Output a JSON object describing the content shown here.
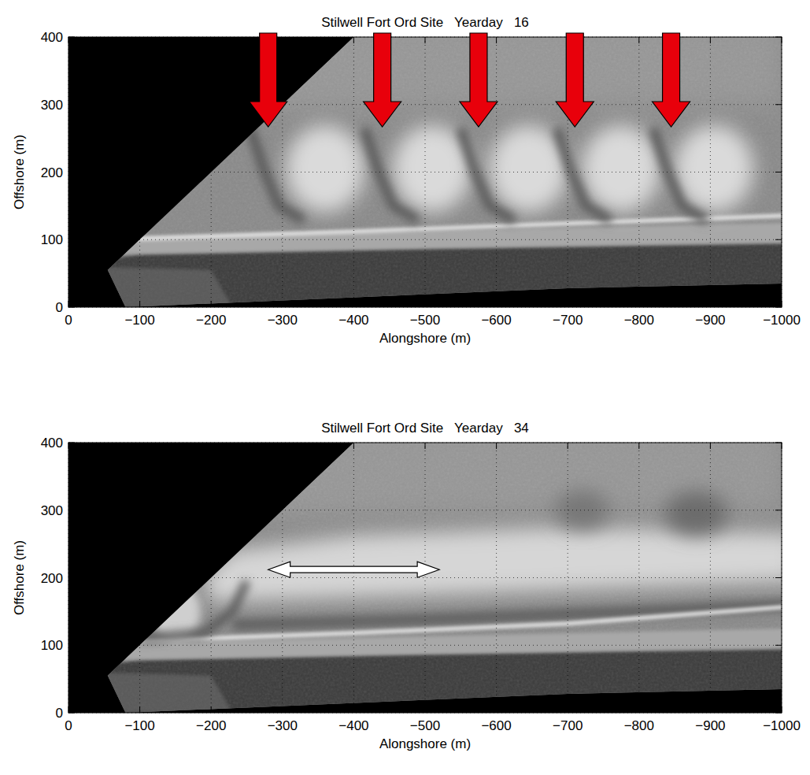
{
  "chart_data": [
    {
      "type": "image",
      "title": "Stilwell Fort Ord Site   Yearday   16",
      "x_label": "Alongshore (m)",
      "y_label": "Offshore (m)",
      "xlim": [
        0,
        -1000
      ],
      "ylim": [
        0,
        400
      ],
      "xticks": [
        0,
        -100,
        -200,
        -300,
        -400,
        -500,
        -600,
        -700,
        -800,
        -900,
        -1000
      ],
      "yticks": [
        0,
        100,
        200,
        300,
        400
      ],
      "grid": true,
      "arrows_x": [
        -280,
        -440,
        -575,
        -710,
        -845
      ]
    },
    {
      "type": "image",
      "title": "Stilwell Fort Ord Site   Yearday   34",
      "x_label": "Alongshore (m)",
      "y_label": "Offshore (m)",
      "xlim": [
        0,
        -1000
      ],
      "ylim": [
        0,
        400
      ],
      "xticks": [
        0,
        -100,
        -200,
        -300,
        -400,
        -500,
        -600,
        -700,
        -800,
        -900,
        -1000
      ],
      "yticks": [
        0,
        100,
        200,
        300,
        400
      ],
      "grid": true,
      "span_x": [
        -280,
        -520
      ],
      "span_y": 212
    }
  ]
}
